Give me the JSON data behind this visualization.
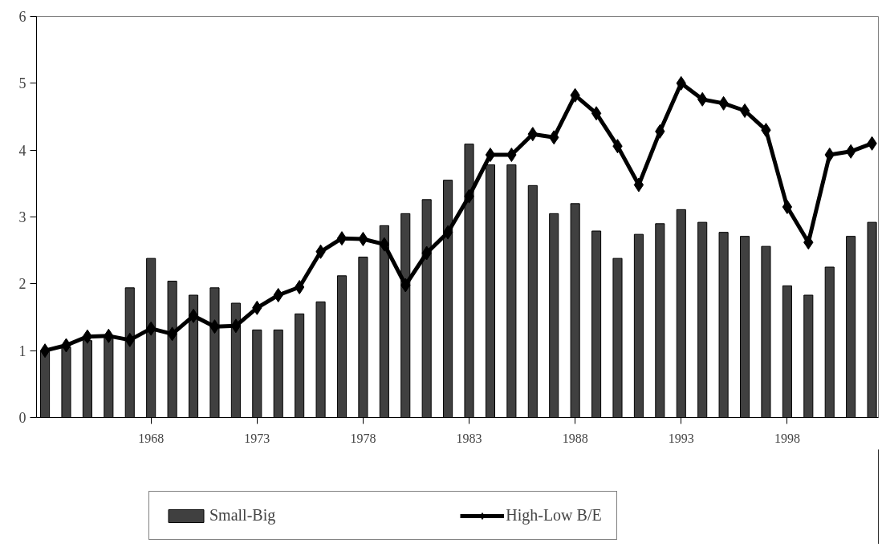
{
  "chart_data": {
    "type": "bar",
    "categories": [
      null,
      null,
      null,
      null,
      null,
      "1968",
      null,
      null,
      null,
      null,
      "1973",
      null,
      null,
      null,
      null,
      "1978",
      null,
      null,
      null,
      null,
      "1983",
      null,
      null,
      null,
      null,
      "1988",
      null,
      null,
      null,
      null,
      "1993",
      null,
      null,
      null,
      null,
      "1998",
      null,
      null,
      null,
      null
    ],
    "series": [
      {
        "name": "Small-Big",
        "type": "bar",
        "color": "#404040",
        "values": [
          1.0,
          1.05,
          1.15,
          1.2,
          1.94,
          2.38,
          2.04,
          1.83,
          1.94,
          1.71,
          1.31,
          1.31,
          1.55,
          1.73,
          2.12,
          2.4,
          2.87,
          3.05,
          3.26,
          3.55,
          4.09,
          3.78,
          3.78,
          3.47,
          3.05,
          3.2,
          2.79,
          2.38,
          2.74,
          2.9,
          3.11,
          2.92,
          2.77,
          2.71,
          2.56,
          1.97,
          1.83,
          2.25,
          2.71,
          2.92
        ]
      },
      {
        "name": "High-Low B/E",
        "type": "line",
        "color": "#000000",
        "marker": "diamond",
        "values": [
          1.0,
          1.08,
          1.21,
          1.22,
          1.16,
          1.33,
          1.25,
          1.52,
          1.36,
          1.37,
          1.64,
          1.83,
          1.95,
          2.48,
          2.68,
          2.67,
          2.59,
          1.98,
          2.46,
          2.77,
          3.31,
          3.93,
          3.93,
          4.24,
          4.19,
          4.82,
          4.55,
          4.06,
          3.48,
          4.28,
          5.0,
          4.76,
          4.7,
          4.59,
          4.3,
          3.15,
          2.62,
          3.93,
          3.98,
          4.1
        ]
      }
    ],
    "ylim": [
      0,
      6
    ],
    "yticks": [
      0,
      1,
      2,
      3,
      4,
      5,
      6
    ],
    "grid": false,
    "legend": "bottom",
    "line_style": "solid"
  }
}
